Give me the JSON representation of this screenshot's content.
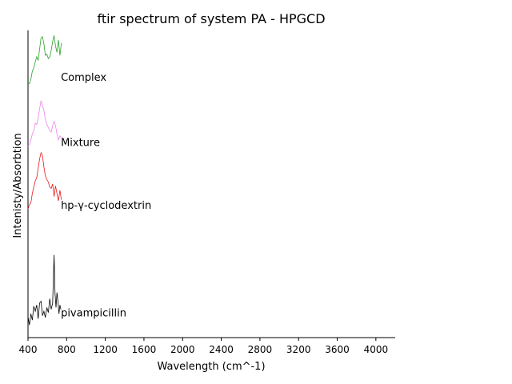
{
  "chart_data": {
    "type": "line",
    "title": "ftir spectrum of system PA - HPGCD",
    "xlabel": "Wavelength (cm^-1)",
    "ylabel": "Intenisty/Absorbtion",
    "xlim": [
      400,
      4200
    ],
    "ylim": [
      0,
      4.9
    ],
    "xticks": [
      400,
      800,
      1200,
      1600,
      2000,
      2400,
      2800,
      3200,
      3600,
      4000
    ],
    "xtick_labels": [
      "400",
      "800",
      "1200",
      "1600",
      "2000",
      "2400",
      "2800",
      "3200",
      "3600",
      "4000"
    ],
    "grid": false,
    "legend": "none",
    "series": [
      {
        "name": "pivampicillin",
        "color": "#000000",
        "label_at": [
          740,
          0.38
        ],
        "x": [
          400,
          415,
          430,
          445,
          460,
          475,
          490,
          505,
          520,
          535,
          550,
          565,
          580,
          595,
          610,
          625,
          640,
          655,
          670,
          680,
          690,
          700,
          710,
          720,
          730,
          740
        ],
        "y": [
          0.33,
          0.2,
          0.38,
          0.28,
          0.5,
          0.42,
          0.52,
          0.3,
          0.55,
          0.58,
          0.35,
          0.42,
          0.32,
          0.48,
          0.4,
          0.62,
          0.45,
          0.55,
          1.32,
          0.7,
          0.48,
          0.72,
          0.58,
          0.38,
          0.52,
          0.45
        ]
      },
      {
        "name": "hp-γ-cyclodextrin",
        "color": "#e8191a",
        "label_at": [
          740,
          2.1
        ],
        "x": [
          400,
          415,
          430,
          445,
          460,
          475,
          490,
          505,
          520,
          535,
          550,
          565,
          580,
          595,
          610,
          625,
          640,
          655,
          670,
          685,
          700,
          715,
          730,
          745
        ],
        "y": [
          2.05,
          2.12,
          2.15,
          2.3,
          2.4,
          2.5,
          2.55,
          2.7,
          2.85,
          2.95,
          2.9,
          2.72,
          2.58,
          2.52,
          2.48,
          2.4,
          2.38,
          2.45,
          2.25,
          2.42,
          2.3,
          2.18,
          2.35,
          2.2
        ]
      },
      {
        "name": "Mixture",
        "color": "#ee82ee",
        "label_at": [
          740,
          3.1
        ],
        "x": [
          400,
          415,
          430,
          445,
          460,
          475,
          490,
          505,
          520,
          535,
          550,
          565,
          580,
          595,
          610,
          625,
          640,
          655,
          670,
          685,
          700,
          715,
          730,
          745
        ],
        "y": [
          3.05,
          3.08,
          3.15,
          3.25,
          3.3,
          3.42,
          3.4,
          3.5,
          3.65,
          3.78,
          3.7,
          3.62,
          3.48,
          3.4,
          3.35,
          3.3,
          3.28,
          3.38,
          3.45,
          3.38,
          3.25,
          3.15,
          3.22,
          3.18
        ]
      },
      {
        "name": "Complex",
        "color": "#2ca02c",
        "label_at": [
          740,
          4.14
        ],
        "x": [
          400,
          415,
          430,
          445,
          460,
          475,
          490,
          505,
          520,
          535,
          550,
          565,
          580,
          595,
          610,
          625,
          640,
          655,
          670,
          685,
          700,
          715,
          730,
          745
        ],
        "y": [
          4.07,
          4.05,
          4.12,
          4.25,
          4.3,
          4.4,
          4.48,
          4.42,
          4.6,
          4.78,
          4.8,
          4.68,
          4.5,
          4.52,
          4.45,
          4.48,
          4.58,
          4.72,
          4.82,
          4.65,
          4.55,
          4.75,
          4.5,
          4.7
        ]
      }
    ]
  }
}
